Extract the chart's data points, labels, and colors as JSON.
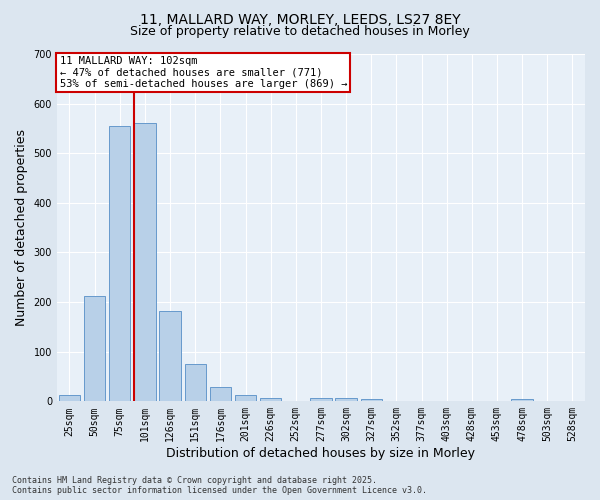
{
  "title_line1": "11, MALLARD WAY, MORLEY, LEEDS, LS27 8EY",
  "title_line2": "Size of property relative to detached houses in Morley",
  "xlabel": "Distribution of detached houses by size in Morley",
  "ylabel": "Number of detached properties",
  "categories": [
    "25sqm",
    "50sqm",
    "75sqm",
    "101sqm",
    "126sqm",
    "151sqm",
    "176sqm",
    "201sqm",
    "226sqm",
    "252sqm",
    "277sqm",
    "302sqm",
    "327sqm",
    "352sqm",
    "377sqm",
    "403sqm",
    "428sqm",
    "453sqm",
    "478sqm",
    "503sqm",
    "528sqm"
  ],
  "values": [
    13,
    212,
    554,
    560,
    182,
    75,
    29,
    13,
    7,
    0,
    7,
    7,
    5,
    0,
    0,
    0,
    0,
    0,
    4,
    0,
    0
  ],
  "bar_color": "#b8d0e8",
  "bar_edge_color": "#6699cc",
  "vline_color": "#cc0000",
  "vline_x_index": 3,
  "annotation_text": "11 MALLARD WAY: 102sqm\n← 47% of detached houses are smaller (771)\n53% of semi-detached houses are larger (869) →",
  "annotation_box_facecolor": "#ffffff",
  "annotation_box_edgecolor": "#cc0000",
  "ylim": [
    0,
    700
  ],
  "yticks": [
    0,
    100,
    200,
    300,
    400,
    500,
    600,
    700
  ],
  "footer_text": "Contains HM Land Registry data © Crown copyright and database right 2025.\nContains public sector information licensed under the Open Government Licence v3.0.",
  "bg_color": "#dce6f0",
  "plot_bg_color": "#e8f0f8",
  "grid_color": "#ffffff",
  "title1_fontsize": 10,
  "title2_fontsize": 9,
  "xlabel_fontsize": 9,
  "ylabel_fontsize": 9,
  "tick_fontsize": 7,
  "annot_fontsize": 7.5,
  "footer_fontsize": 6
}
